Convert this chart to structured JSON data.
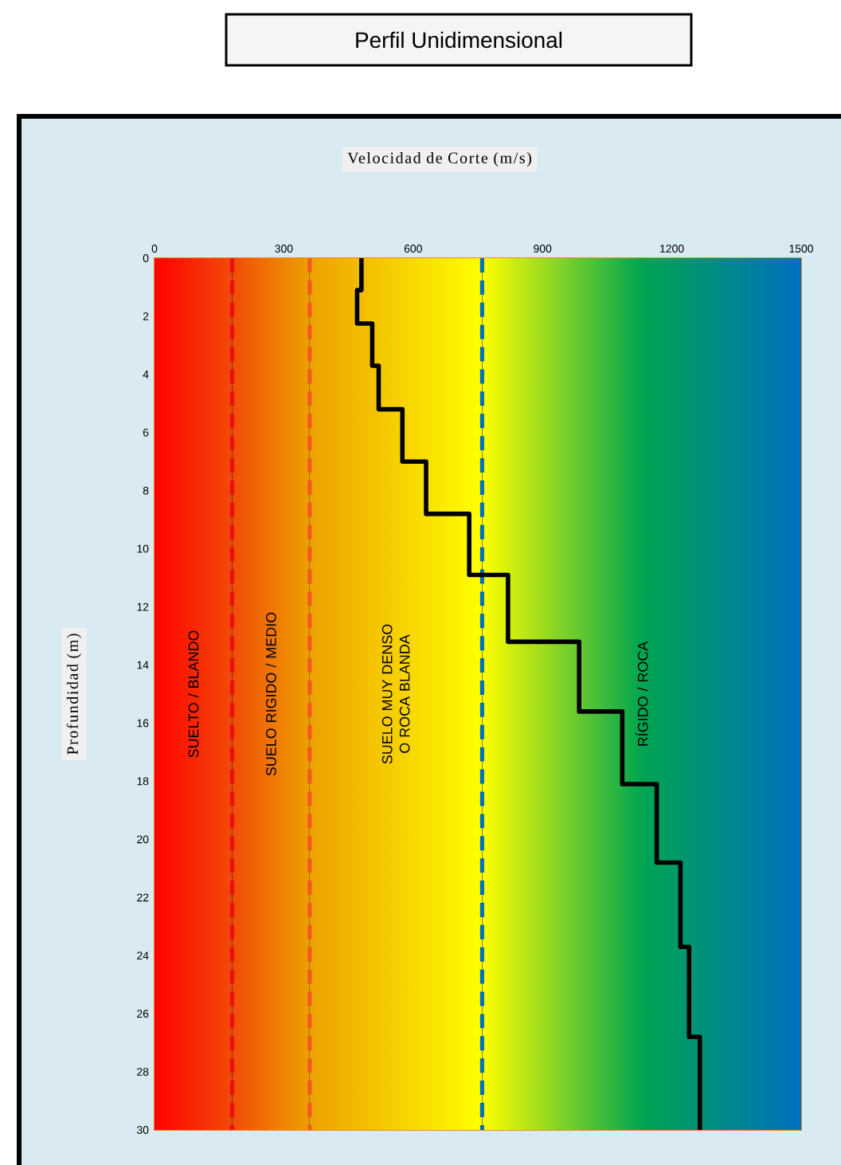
{
  "chart_data": {
    "type": "line",
    "title": "Perfil Unidimensional",
    "xlabel": "Velocidad de Corte (m/s)",
    "ylabel": "Profundidad (m)",
    "xlim": [
      0,
      1500
    ],
    "xticks": [
      0,
      300,
      600,
      900,
      1200,
      1500
    ],
    "ylim": [
      30,
      0
    ],
    "yticks": [
      0,
      2,
      4,
      6,
      8,
      10,
      12,
      14,
      16,
      18,
      20,
      22,
      24,
      26,
      28,
      30
    ],
    "grid": true,
    "marker": "none",
    "line_style": "solid",
    "series": [
      {
        "color": "#000000",
        "x": [
          480,
          480,
          470,
          470,
          505,
          505,
          520,
          520,
          575,
          575,
          630,
          630,
          730,
          730,
          820,
          820,
          985,
          985,
          1085,
          1085,
          1165,
          1165,
          1220,
          1220,
          1240,
          1240,
          1265,
          1265
        ],
        "values": [
          0,
          1.1,
          1.1,
          2.25,
          2.25,
          3.7,
          3.7,
          5.2,
          5.2,
          7.0,
          7.0,
          8.8,
          8.8,
          10.9,
          10.9,
          13.2,
          13.2,
          15.6,
          15.6,
          18.1,
          18.1,
          20.8,
          20.8,
          23.7,
          23.7,
          26.8,
          26.8,
          30
        ]
      }
    ],
    "ref_lines": [
      {
        "axis": "x",
        "value": 180,
        "color": "#e81010",
        "line_style": "dashed"
      },
      {
        "axis": "x",
        "value": 360,
        "color": "#f05a20",
        "line_style": "dashed"
      },
      {
        "axis": "x",
        "value": 760,
        "color": "#0070c0",
        "line_style": "dashed"
      }
    ],
    "bands": [
      {
        "axis": "x",
        "from": 0,
        "to": 180,
        "label": "SUELTO / BLANDO",
        "color": "#ff0000"
      },
      {
        "axis": "x",
        "from": 180,
        "to": 360,
        "label": "SUELO RIGIDO / MEDIO",
        "color": "#f24a08"
      },
      {
        "axis": "x",
        "from": 360,
        "to": 760,
        "label": "SUELO MUY DENSO O ROCA BLANDA",
        "color": "#eda000"
      },
      {
        "axis": "x",
        "from": 760,
        "to": 1500,
        "label": "RÍGIDO / ROCA",
        "color": "#ffff00"
      }
    ]
  }
}
